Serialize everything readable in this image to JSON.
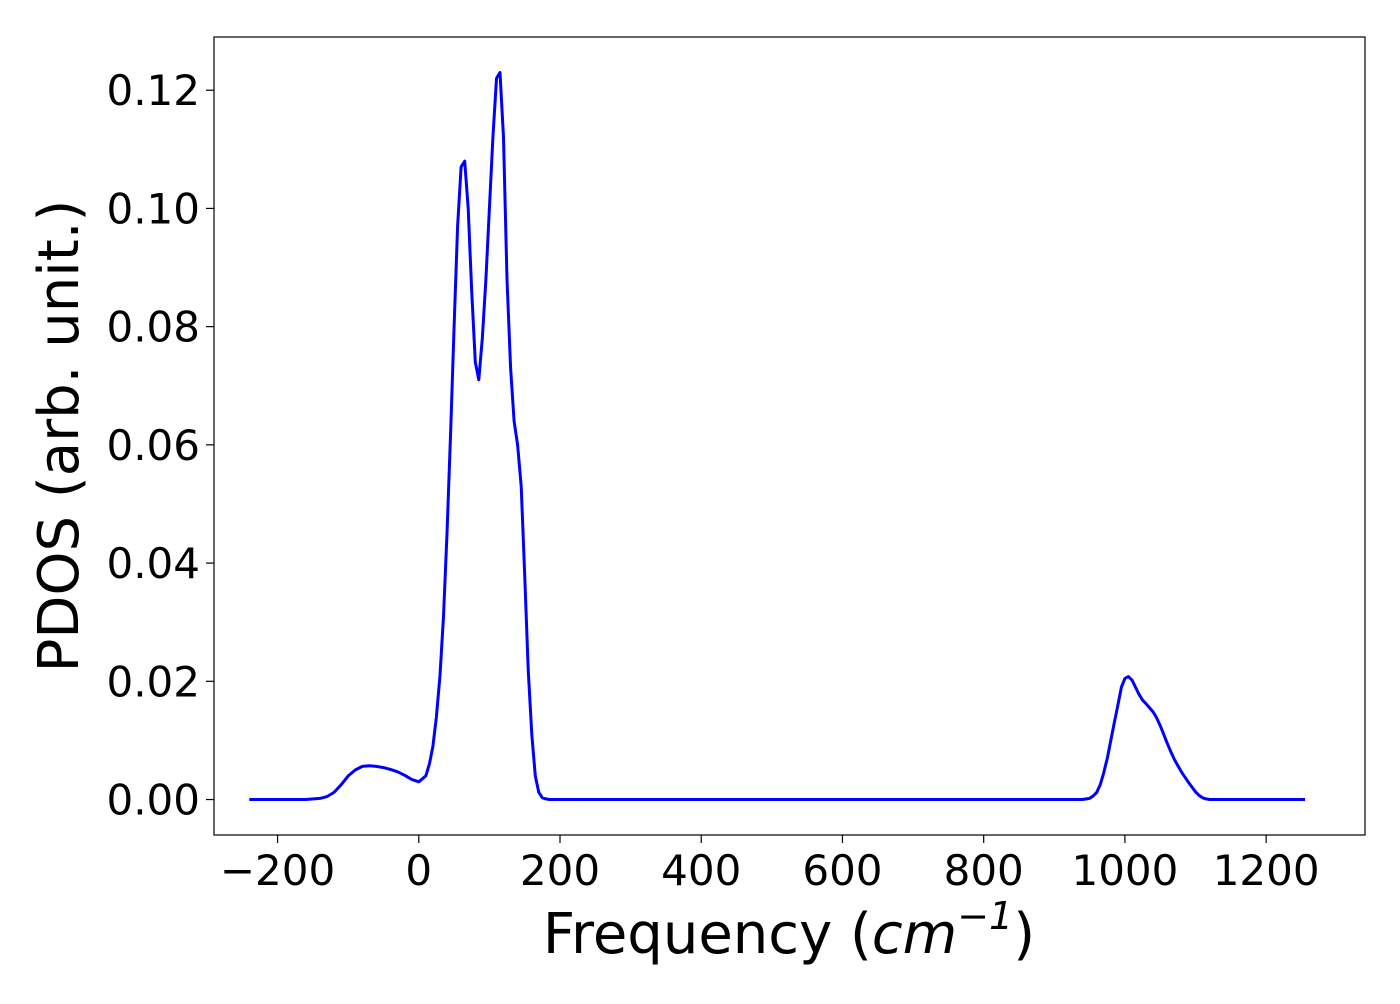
{
  "chart_data": {
    "type": "line",
    "title": "",
    "xlabel": "Frequency (cm⁻¹)",
    "xlabel_parts": {
      "prefix": "Frequency (",
      "unit_base": "cm",
      "unit_exponent": "−1",
      "suffix": ")"
    },
    "ylabel": "PDOS (arb. unit.)",
    "xlim": [
      -290,
      1340
    ],
    "ylim": [
      -0.006,
      0.129
    ],
    "x_ticks": [
      -200,
      0,
      200,
      400,
      600,
      800,
      1000,
      1200
    ],
    "x_tick_labels": [
      "−200",
      "0",
      "200",
      "400",
      "600",
      "800",
      "1000",
      "1200"
    ],
    "y_ticks": [
      0.0,
      0.02,
      0.04,
      0.06,
      0.08,
      0.1,
      0.12
    ],
    "y_tick_labels": [
      "0.00",
      "0.02",
      "0.04",
      "0.06",
      "0.08",
      "0.10",
      "0.12"
    ],
    "grid": false,
    "legend": "none",
    "series": [
      {
        "color": "#0000ff",
        "x": [
          -240,
          -200,
          -160,
          -140,
          -130,
          -120,
          -110,
          -100,
          -90,
          -80,
          -70,
          -60,
          -50,
          -40,
          -30,
          -20,
          -10,
          0,
          10,
          15,
          20,
          25,
          30,
          35,
          40,
          45,
          50,
          55,
          60,
          65,
          70,
          75,
          80,
          85,
          90,
          95,
          100,
          105,
          110,
          115,
          120,
          125,
          130,
          135,
          140,
          145,
          150,
          155,
          160,
          165,
          170,
          175,
          180,
          185,
          190,
          195,
          200,
          205,
          210,
          215,
          220,
          225,
          230,
          235,
          240,
          245,
          250,
          260,
          300,
          400,
          600,
          800,
          940,
          950,
          955,
          960,
          965,
          970,
          975,
          980,
          985,
          990,
          995,
          1000,
          1005,
          1010,
          1015,
          1020,
          1025,
          1030,
          1035,
          1040,
          1045,
          1050,
          1055,
          1060,
          1065,
          1070,
          1075,
          1080,
          1085,
          1090,
          1095,
          1100,
          1105,
          1110,
          1115,
          1120,
          1125,
          1130,
          1135,
          1140,
          1145,
          1150,
          1160,
          1200,
          1255
        ],
        "y": [
          0.0,
          0.0,
          0.0,
          0.0002,
          0.0005,
          0.0012,
          0.0025,
          0.004,
          0.005,
          0.0056,
          0.0057,
          0.0056,
          0.0054,
          0.0051,
          0.0047,
          0.0041,
          0.0034,
          0.003,
          0.004,
          0.006,
          0.009,
          0.014,
          0.021,
          0.031,
          0.045,
          0.062,
          0.08,
          0.097,
          0.107,
          0.108,
          0.1,
          0.086,
          0.074,
          0.071,
          0.078,
          0.088,
          0.1,
          0.112,
          0.122,
          0.123,
          0.112,
          0.088,
          0.073,
          0.064,
          0.06,
          0.053,
          0.038,
          0.022,
          0.011,
          0.004,
          0.0012,
          0.0003,
          0.0001,
          0.0,
          0.0,
          0.0,
          0.0,
          0.0,
          0.0,
          0.0,
          0.0,
          0.0,
          0.0,
          0.0,
          0.0,
          0.0,
          0.0,
          0.0,
          0.0,
          0.0,
          0.0,
          0.0,
          0.0,
          0.0002,
          0.0006,
          0.0012,
          0.0025,
          0.0045,
          0.007,
          0.01,
          0.013,
          0.016,
          0.019,
          0.0205,
          0.0208,
          0.0202,
          0.019,
          0.0178,
          0.0168,
          0.0162,
          0.0155,
          0.0148,
          0.0138,
          0.0125,
          0.011,
          0.0095,
          0.0081,
          0.0068,
          0.0057,
          0.0047,
          0.0038,
          0.0029,
          0.0021,
          0.0013,
          0.0007,
          0.0003,
          0.0001,
          0.0,
          0.0,
          0.0,
          0.0,
          0.0,
          0.0,
          0.0,
          0.0,
          0.0,
          0.0
        ]
      }
    ]
  }
}
